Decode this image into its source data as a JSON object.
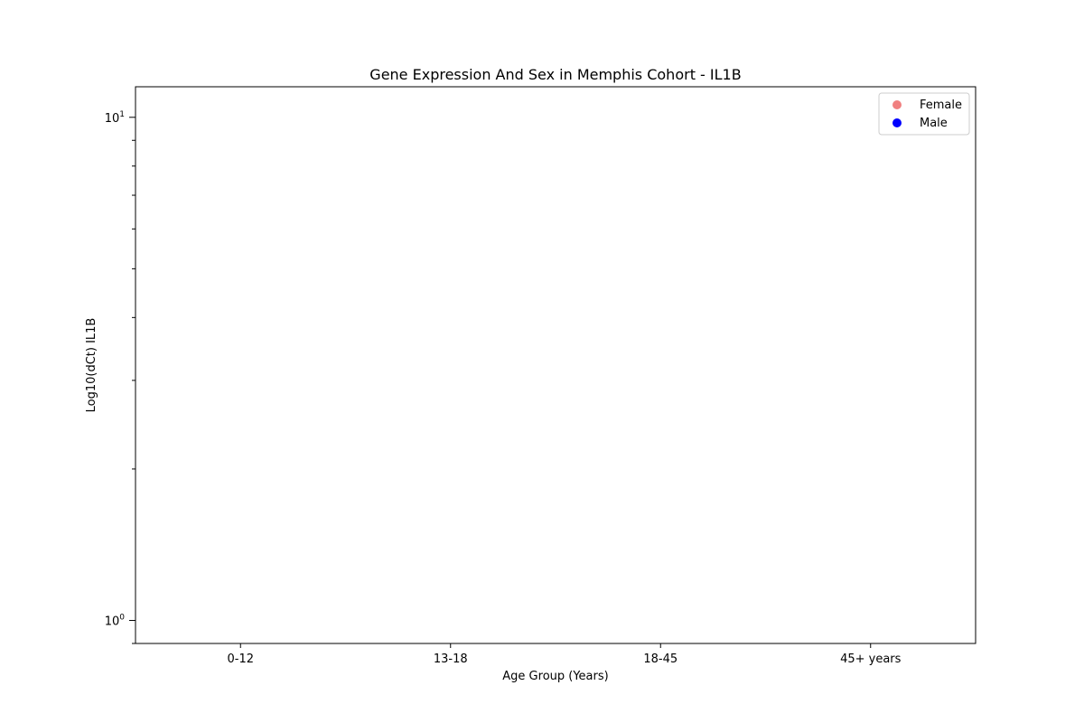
{
  "chart_data": {
    "type": "scatter",
    "title": "Gene Expression And Sex in Memphis Cohort - IL1B",
    "xlabel": "Age Group (Years)",
    "ylabel": "Log10(dCt) IL1B",
    "categories": [
      "0-12",
      "13-18",
      "18-45",
      "45+ years"
    ],
    "yscale": "log",
    "ylim": [
      0.9,
      11.5
    ],
    "yticks": [
      {
        "value": 1,
        "base": "10",
        "exp": "0"
      },
      {
        "value": 10,
        "base": "10",
        "exp": "1"
      }
    ],
    "grid": false,
    "legend_position": "top-right",
    "series": [
      {
        "name": "Female",
        "color": "#f08080",
        "points": []
      },
      {
        "name": "Male",
        "color": "#0000ff",
        "points": []
      }
    ]
  }
}
